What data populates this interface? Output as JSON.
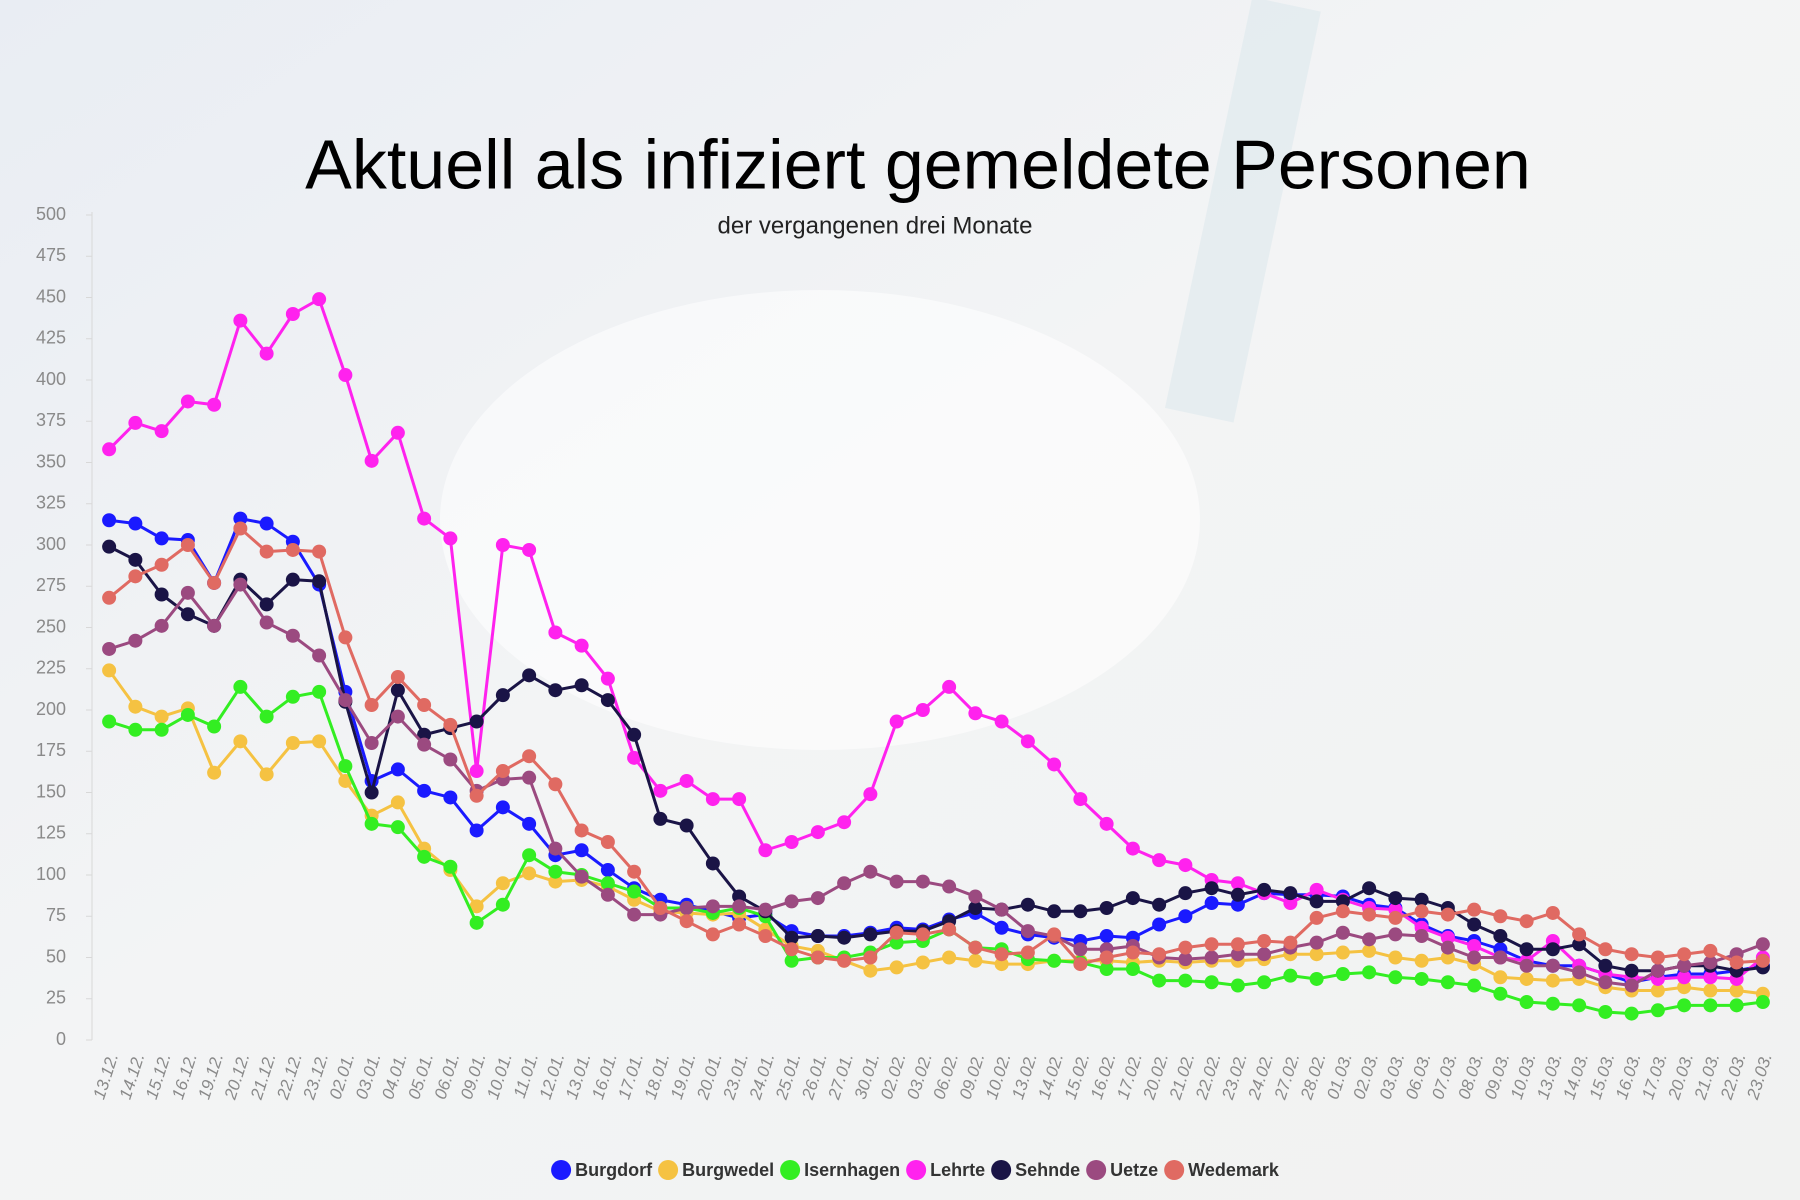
{
  "chart_data": {
    "type": "line",
    "title": "Aktuell als infiziert gemeldete Personen",
    "subtitle": "der vergangenen drei Monate",
    "categories": [
      "13.12.",
      "14.12.",
      "15.12.",
      "16.12.",
      "19.12.",
      "20.12.",
      "21.12.",
      "22.12.",
      "23.12.",
      "02.01.",
      "03.01.",
      "04.01.",
      "05.01.",
      "06.01.",
      "09.01.",
      "10.01.",
      "11.01.",
      "12.01.",
      "13.01.",
      "16.01.",
      "17.01.",
      "18.01.",
      "19.01.",
      "20.01.",
      "23.01.",
      "24.01.",
      "25.01.",
      "26.01.",
      "27.01.",
      "30.01.",
      "02.02.",
      "03.02.",
      "06.02.",
      "09.02.",
      "10.02.",
      "13.02.",
      "14.02.",
      "15.02.",
      "16.02.",
      "17.02.",
      "20.02.",
      "21.02.",
      "22.02.",
      "23.02.",
      "24.02.",
      "27.02.",
      "28.02.",
      "01.03.",
      "02.03.",
      "03.03.",
      "06.03.",
      "07.03.",
      "08.03.",
      "09.03.",
      "10.03.",
      "13.03.",
      "14.03.",
      "15.03.",
      "16.03.",
      "17.03.",
      "20.03.",
      "21.03.",
      "22.03.",
      "23.03."
    ],
    "series": [
      {
        "name": "Burgdorf",
        "color": "#1a1aff",
        "values": [
          315,
          313,
          304,
          303,
          277,
          316,
          313,
          302,
          276,
          211,
          157,
          164,
          151,
          147,
          127,
          141,
          131,
          112,
          115,
          103,
          92,
          85,
          82,
          78,
          74,
          76,
          66,
          63,
          63,
          65,
          68,
          67,
          73,
          77,
          68,
          64,
          62,
          60,
          63,
          62,
          70,
          75,
          83,
          82,
          89,
          88,
          88,
          87,
          82,
          80,
          70,
          63,
          60,
          55,
          48,
          45,
          45,
          40,
          35,
          38,
          40,
          40,
          42,
          45
        ]
      },
      {
        "name": "Burgwedel",
        "color": "#f5c242",
        "values": [
          224,
          202,
          196,
          201,
          162,
          181,
          161,
          180,
          181,
          157,
          136,
          144,
          116,
          103,
          81,
          95,
          101,
          96,
          97,
          93,
          85,
          78,
          77,
          76,
          77,
          67,
          57,
          54,
          48,
          42,
          44,
          47,
          50,
          48,
          46,
          46,
          48,
          48,
          48,
          47,
          48,
          47,
          48,
          48,
          49,
          52,
          52,
          53,
          54,
          50,
          48,
          50,
          46,
          38,
          37,
          36,
          37,
          32,
          30,
          30,
          32,
          30,
          30,
          28
        ]
      },
      {
        "name": "Isernhagen",
        "color": "#33ee22",
        "values": [
          193,
          188,
          188,
          197,
          190,
          214,
          196,
          208,
          211,
          166,
          131,
          129,
          111,
          105,
          71,
          82,
          112,
          102,
          100,
          95,
          90,
          80,
          80,
          77,
          80,
          75,
          48,
          50,
          50,
          53,
          59,
          60,
          67,
          56,
          55,
          49,
          48,
          47,
          43,
          43,
          36,
          36,
          35,
          33,
          35,
          39,
          37,
          40,
          41,
          38,
          37,
          35,
          33,
          28,
          23,
          22,
          21,
          17,
          16,
          18,
          21,
          21,
          21,
          23
        ]
      },
      {
        "name": "Lehrte",
        "color": "#ff22ee",
        "values": [
          358,
          374,
          369,
          387,
          385,
          436,
          416,
          440,
          449,
          403,
          351,
          368,
          316,
          304,
          163,
          300,
          297,
          247,
          239,
          219,
          171,
          151,
          157,
          146,
          146,
          115,
          120,
          126,
          132,
          149,
          193,
          200,
          214,
          198,
          193,
          181,
          167,
          146,
          131,
          116,
          109,
          106,
          97,
          95,
          89,
          83,
          91,
          85,
          80,
          79,
          68,
          62,
          57,
          50,
          48,
          60,
          45,
          40,
          38,
          37,
          38,
          38,
          37,
          50
        ]
      },
      {
        "name": "Sehnde",
        "color": "#1a1446",
        "values": [
          299,
          291,
          270,
          258,
          251,
          279,
          264,
          279,
          278,
          205,
          150,
          212,
          185,
          189,
          193,
          209,
          221,
          212,
          215,
          206,
          185,
          134,
          130,
          107,
          87,
          78,
          62,
          63,
          62,
          64,
          66,
          66,
          72,
          80,
          79,
          82,
          78,
          78,
          80,
          86,
          82,
          89,
          92,
          88,
          91,
          89,
          84,
          84,
          92,
          86,
          85,
          80,
          70,
          63,
          55,
          55,
          58,
          45,
          42,
          42,
          45,
          45,
          42,
          44
        ]
      },
      {
        "name": "Uetze",
        "color": "#9b4a80",
        "values": [
          237,
          242,
          251,
          271,
          251,
          276,
          253,
          245,
          233,
          206,
          180,
          196,
          179,
          170,
          151,
          158,
          159,
          116,
          99,
          88,
          76,
          76,
          80,
          81,
          81,
          79,
          84,
          86,
          95,
          102,
          96,
          96,
          93,
          87,
          79,
          66,
          63,
          55,
          55,
          57,
          50,
          49,
          50,
          52,
          52,
          56,
          59,
          65,
          61,
          64,
          63,
          56,
          50,
          50,
          45,
          45,
          41,
          35,
          33,
          42,
          45,
          47,
          52,
          58
        ]
      },
      {
        "name": "Wedemark",
        "color": "#e06a62",
        "values": [
          268,
          281,
          288,
          300,
          277,
          310,
          296,
          297,
          296,
          244,
          203,
          220,
          203,
          191,
          148,
          163,
          172,
          155,
          127,
          120,
          102,
          80,
          72,
          64,
          70,
          63,
          55,
          50,
          48,
          50,
          65,
          64,
          67,
          56,
          52,
          53,
          64,
          46,
          50,
          53,
          52,
          56,
          58,
          58,
          60,
          59,
          74,
          78,
          76,
          74,
          78,
          76,
          79,
          75,
          72,
          77,
          64,
          55,
          52,
          50,
          52,
          54,
          47,
          48
        ]
      }
    ],
    "ylim": [
      0,
      500
    ],
    "yticks": [
      0,
      25,
      50,
      75,
      100,
      125,
      150,
      175,
      200,
      225,
      250,
      275,
      300,
      325,
      350,
      375,
      400,
      425,
      450,
      475,
      500
    ],
    "legend": "bottom"
  }
}
